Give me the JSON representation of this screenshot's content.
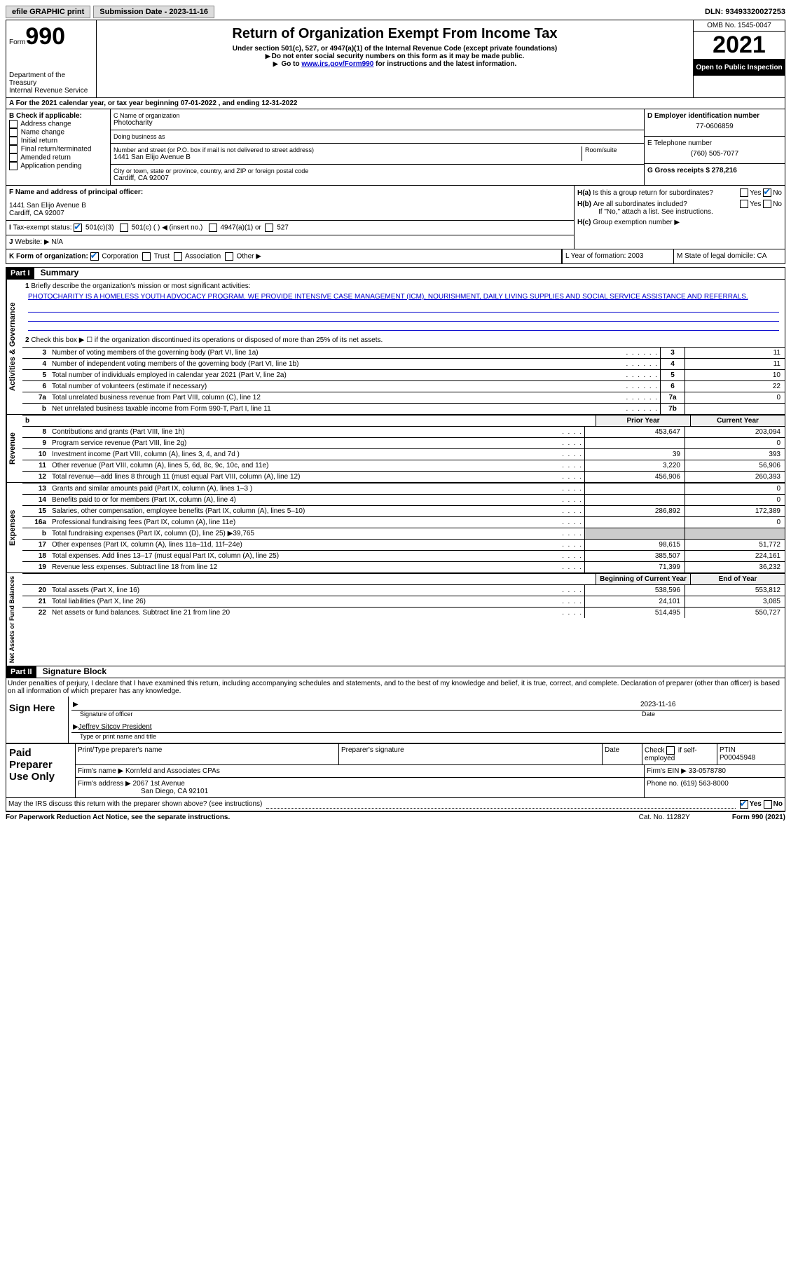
{
  "top": {
    "efile": "efile GRAPHIC print",
    "submission_label": "Submission Date - 2023-11-16",
    "dln": "DLN: 93493320027253"
  },
  "header": {
    "form_word": "Form",
    "form_num": "990",
    "dept": "Department of the Treasury",
    "irs": "Internal Revenue Service",
    "title": "Return of Organization Exempt From Income Tax",
    "sub1": "Under section 501(c), 527, or 4947(a)(1) of the Internal Revenue Code (except private foundations)",
    "sub2": "Do not enter social security numbers on this form as it may be made public.",
    "sub3_pre": "Go to ",
    "sub3_link": "www.irs.gov/Form990",
    "sub3_post": " for instructions and the latest information.",
    "omb": "OMB No. 1545-0047",
    "year": "2021",
    "open": "Open to Public Inspection"
  },
  "a": "For the 2021 calendar year, or tax year beginning 07-01-2022    , and ending 12-31-2022",
  "b": {
    "label": "B Check if applicable:",
    "opts": [
      "Address change",
      "Name change",
      "Initial return",
      "Final return/terminated",
      "Amended return",
      "Application pending"
    ]
  },
  "c": {
    "name_lbl": "C Name of organization",
    "name": "Photocharity",
    "dba_lbl": "Doing business as",
    "addr_lbl": "Number and street (or P.O. box if mail is not delivered to street address)",
    "room_lbl": "Room/suite",
    "addr": "1441 San Elijo Avenue B",
    "city_lbl": "City or town, state or province, country, and ZIP or foreign postal code",
    "city": "Cardiff, CA  92007"
  },
  "d": {
    "lbl": "D Employer identification number",
    "val": "77-0606859"
  },
  "e": {
    "lbl": "E Telephone number",
    "val": "(760) 505-7077"
  },
  "g": "G Gross receipts $ 278,216",
  "f": {
    "lbl": "F Name and address of principal officer:",
    "addr1": "1441 San Elijo Avenue B",
    "addr2": "Cardiff, CA  92007"
  },
  "h": {
    "a": "Is this a group return for subordinates?",
    "b": "Are all subordinates included?",
    "note": "If \"No,\" attach a list. See instructions.",
    "c": "Group exemption number"
  },
  "i": {
    "lbl": "Tax-exempt status:",
    "opts": [
      "501(c)(3)",
      "501(c) (  ) ◀ (insert no.)",
      "4947(a)(1) or",
      "527"
    ]
  },
  "j": "Website: ▶  N/A",
  "k_lbl": "K Form of organization:",
  "k_opts": [
    "Corporation",
    "Trust",
    "Association",
    "Other ▶"
  ],
  "l": "L Year of formation: 2003",
  "m": "M State of legal domicile: CA",
  "part1_hdr": "Part I",
  "part1_title": "Summary",
  "mission_lbl": "Briefly describe the organization's mission or most significant activities:",
  "mission": "PHOTOCHARITY IS A HOMELESS YOUTH ADVOCACY PROGRAM. WE PROVIDE INTENSIVE CASE MANAGEMENT (ICM), NOURISHMENT, DAILY LIVING SUPPLIES AND SOCIAL SERVICE ASSISTANCE AND REFERRALS.",
  "line2": "Check this box ▶ ☐ if the organization discontinued its operations or disposed of more than 25% of its net assets.",
  "summary_lines": [
    {
      "n": "3",
      "t": "Number of voting members of the governing body (Part VI, line 1a)",
      "box": "3",
      "v": "11"
    },
    {
      "n": "4",
      "t": "Number of independent voting members of the governing body (Part VI, line 1b)",
      "box": "4",
      "v": "11"
    },
    {
      "n": "5",
      "t": "Total number of individuals employed in calendar year 2021 (Part V, line 2a)",
      "box": "5",
      "v": "10"
    },
    {
      "n": "6",
      "t": "Total number of volunteers (estimate if necessary)",
      "box": "6",
      "v": "22"
    },
    {
      "n": "7a",
      "t": "Total unrelated business revenue from Part VIII, column (C), line 12",
      "box": "7a",
      "v": "0"
    },
    {
      "n": "b",
      "t": "Net unrelated business taxable income from Form 990-T, Part I, line 11",
      "box": "7b",
      "v": ""
    }
  ],
  "col_prior": "Prior Year",
  "col_current": "Current Year",
  "revenue_lines": [
    {
      "n": "8",
      "t": "Contributions and grants (Part VIII, line 1h)",
      "p": "453,647",
      "c": "203,094"
    },
    {
      "n": "9",
      "t": "Program service revenue (Part VIII, line 2g)",
      "p": "",
      "c": "0"
    },
    {
      "n": "10",
      "t": "Investment income (Part VIII, column (A), lines 3, 4, and 7d )",
      "p": "39",
      "c": "393"
    },
    {
      "n": "11",
      "t": "Other revenue (Part VIII, column (A), lines 5, 6d, 8c, 9c, 10c, and 11e)",
      "p": "3,220",
      "c": "56,906"
    },
    {
      "n": "12",
      "t": "Total revenue—add lines 8 through 11 (must equal Part VIII, column (A), line 12)",
      "p": "456,906",
      "c": "260,393"
    }
  ],
  "expense_lines": [
    {
      "n": "13",
      "t": "Grants and similar amounts paid (Part IX, column (A), lines 1–3 )",
      "p": "",
      "c": "0"
    },
    {
      "n": "14",
      "t": "Benefits paid to or for members (Part IX, column (A), line 4)",
      "p": "",
      "c": "0"
    },
    {
      "n": "15",
      "t": "Salaries, other compensation, employee benefits (Part IX, column (A), lines 5–10)",
      "p": "286,892",
      "c": "172,389"
    },
    {
      "n": "16a",
      "t": "Professional fundraising fees (Part IX, column (A), line 11e)",
      "p": "",
      "c": "0"
    },
    {
      "n": "b",
      "t": "Total fundraising expenses (Part IX, column (D), line 25) ▶39,765",
      "p": "shaded",
      "c": "shaded"
    },
    {
      "n": "17",
      "t": "Other expenses (Part IX, column (A), lines 11a–11d, 11f–24e)",
      "p": "98,615",
      "c": "51,772"
    },
    {
      "n": "18",
      "t": "Total expenses. Add lines 13–17 (must equal Part IX, column (A), line 25)",
      "p": "385,507",
      "c": "224,161"
    },
    {
      "n": "19",
      "t": "Revenue less expenses. Subtract line 18 from line 12",
      "p": "71,399",
      "c": "36,232"
    }
  ],
  "col_begin": "Beginning of Current Year",
  "col_end": "End of Year",
  "net_lines": [
    {
      "n": "20",
      "t": "Total assets (Part X, line 16)",
      "p": "538,596",
      "c": "553,812"
    },
    {
      "n": "21",
      "t": "Total liabilities (Part X, line 26)",
      "p": "24,101",
      "c": "3,085"
    },
    {
      "n": "22",
      "t": "Net assets or fund balances. Subtract line 21 from line 20",
      "p": "514,495",
      "c": "550,727"
    }
  ],
  "vert_labels": {
    "gov": "Activities & Governance",
    "rev": "Revenue",
    "exp": "Expenses",
    "net": "Net Assets or Fund Balances"
  },
  "part2_hdr": "Part II",
  "part2_title": "Signature Block",
  "penalty": "Under penalties of perjury, I declare that I have examined this return, including accompanying schedules and statements, and to the best of my knowledge and belief, it is true, correct, and complete. Declaration of preparer (other than officer) is based on all information of which preparer has any knowledge.",
  "sign": {
    "here": "Sign Here",
    "sig_lbl": "Signature of officer",
    "date": "2023-11-16",
    "date_lbl": "Date",
    "name": "Jeffrey Sitcov President",
    "name_lbl": "Type or print name and title"
  },
  "prep": {
    "label": "Paid Preparer Use Only",
    "h1": "Print/Type preparer's name",
    "h2": "Preparer's signature",
    "h3": "Date",
    "h4_pre": "Check",
    "h4_post": "if self-employed",
    "h5": "PTIN",
    "ptin": "P00045948",
    "firm_lbl": "Firm's name   ▶",
    "firm": "Kornfeld and Associates CPAs",
    "ein_lbl": "Firm's EIN ▶",
    "ein": "33-0578780",
    "addr_lbl": "Firm's address ▶",
    "addr1": "2067 1st Avenue",
    "addr2": "San Diego, CA  92101",
    "phone_lbl": "Phone no.",
    "phone": "(619) 563-8000"
  },
  "discuss": "May the IRS discuss this return with the preparer shown above? (see instructions)",
  "yes": "Yes",
  "no": "No",
  "paperwork": "For Paperwork Reduction Act Notice, see the separate instructions.",
  "cat": "Cat. No. 11282Y",
  "form_foot": "Form 990 (2021)"
}
